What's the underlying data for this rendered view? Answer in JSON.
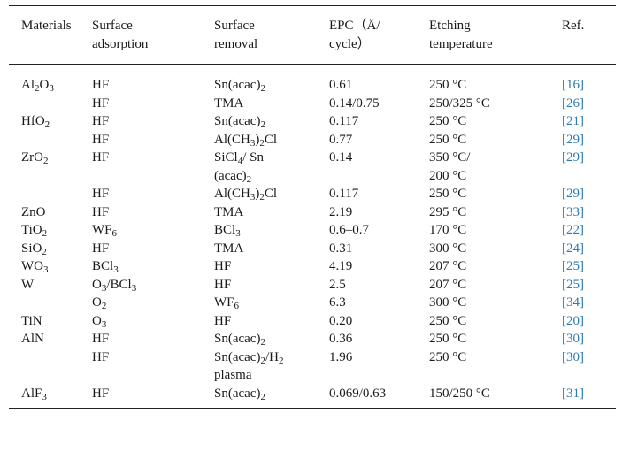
{
  "headers": [
    [
      "Materials"
    ],
    [
      "Surface",
      "adsorption"
    ],
    [
      "Surface",
      "removal"
    ],
    [
      "EPC（Å/",
      "cycle）"
    ],
    [
      "Etching",
      "temperature"
    ],
    [
      "Ref."
    ]
  ],
  "rows": [
    {
      "material": "Al<sub>2</sub>O<sub>3</sub>",
      "adsorption": [
        "HF"
      ],
      "removal": [
        "Sn(acac)<sub>2</sub>"
      ],
      "epc": [
        "0.61"
      ],
      "temp": [
        "250 °C"
      ],
      "ref": "[16]"
    },
    {
      "material": "",
      "adsorption": [
        "HF"
      ],
      "removal": [
        "TMA"
      ],
      "epc": [
        "0.14/0.75"
      ],
      "temp": [
        "250/325 °C"
      ],
      "ref": "[26]"
    },
    {
      "material": "HfO<sub>2</sub>",
      "adsorption": [
        "HF"
      ],
      "removal": [
        "Sn(acac)<sub>2</sub>"
      ],
      "epc": [
        "0.117"
      ],
      "temp": [
        "250 °C"
      ],
      "ref": "[21]"
    },
    {
      "material": "",
      "adsorption": [
        "HF"
      ],
      "removal": [
        "Al(CH<sub>3</sub>)<sub>2</sub>Cl"
      ],
      "epc": [
        "0.77"
      ],
      "temp": [
        "250 °C"
      ],
      "ref": "[29]"
    },
    {
      "material": "ZrO<sub>2</sub>",
      "adsorption": [
        "HF"
      ],
      "removal": [
        "SiCl<sub>4</sub>/ Sn",
        "(acac)<sub>2</sub>"
      ],
      "epc": [
        "0.14"
      ],
      "temp": [
        "350 °C/",
        "200 °C"
      ],
      "ref": "[29]"
    },
    {
      "material": "",
      "adsorption": [
        "HF"
      ],
      "removal": [
        "Al(CH<sub>3</sub>)<sub>2</sub>Cl"
      ],
      "epc": [
        "0.117"
      ],
      "temp": [
        "250 °C"
      ],
      "ref": "[29]"
    },
    {
      "material": "ZnO",
      "adsorption": [
        "HF"
      ],
      "removal": [
        "TMA"
      ],
      "epc": [
        "2.19"
      ],
      "temp": [
        "295 °C"
      ],
      "ref": "[33]"
    },
    {
      "material": "TiO<sub>2</sub>",
      "adsorption": [
        "WF<sub>6</sub>"
      ],
      "removal": [
        "BCl<sub>3</sub>"
      ],
      "epc": [
        "0.6–0.7"
      ],
      "temp": [
        "170 °C"
      ],
      "ref": "[22]"
    },
    {
      "material": "SiO<sub>2</sub>",
      "adsorption": [
        "HF"
      ],
      "removal": [
        "TMA"
      ],
      "epc": [
        "0.31"
      ],
      "temp": [
        "300 °C"
      ],
      "ref": "[24]"
    },
    {
      "material": "WO<sub>3</sub>",
      "adsorption": [
        "BCl<sub>3</sub>"
      ],
      "removal": [
        "HF"
      ],
      "epc": [
        "4.19"
      ],
      "temp": [
        "207 °C"
      ],
      "ref": "[25]"
    },
    {
      "material": "W",
      "adsorption": [
        "O<sub>3</sub>/BCl<sub>3</sub>"
      ],
      "removal": [
        "HF"
      ],
      "epc": [
        "2.5"
      ],
      "temp": [
        "207 °C"
      ],
      "ref": "[25]"
    },
    {
      "material": "",
      "adsorption": [
        "O<sub>2</sub>"
      ],
      "removal": [
        "WF<sub>6</sub>"
      ],
      "epc": [
        "6.3"
      ],
      "temp": [
        "300 °C"
      ],
      "ref": "[34]"
    },
    {
      "material": "TiN",
      "adsorption": [
        "O<sub>3</sub>"
      ],
      "removal": [
        "HF"
      ],
      "epc": [
        "0.20"
      ],
      "temp": [
        "250 °C"
      ],
      "ref": "[20]"
    },
    {
      "material": "AlN",
      "adsorption": [
        "HF"
      ],
      "removal": [
        "Sn(acac)<sub>2</sub>"
      ],
      "epc": [
        "0.36"
      ],
      "temp": [
        "250 °C"
      ],
      "ref": "[30]"
    },
    {
      "material": "",
      "adsorption": [
        "HF"
      ],
      "removal": [
        "Sn(acac)<sub>2</sub>/H<sub>2</sub>",
        "plasma"
      ],
      "epc": [
        "1.96"
      ],
      "temp": [
        "250 °C"
      ],
      "ref": "[30]"
    },
    {
      "material": "AlF<sub>3</sub>",
      "adsorption": [
        "HF"
      ],
      "removal": [
        "Sn(acac)<sub>2</sub>"
      ],
      "epc": [
        "0.069/0.63"
      ],
      "temp": [
        "150/250 °C"
      ],
      "ref": "[31]"
    }
  ]
}
